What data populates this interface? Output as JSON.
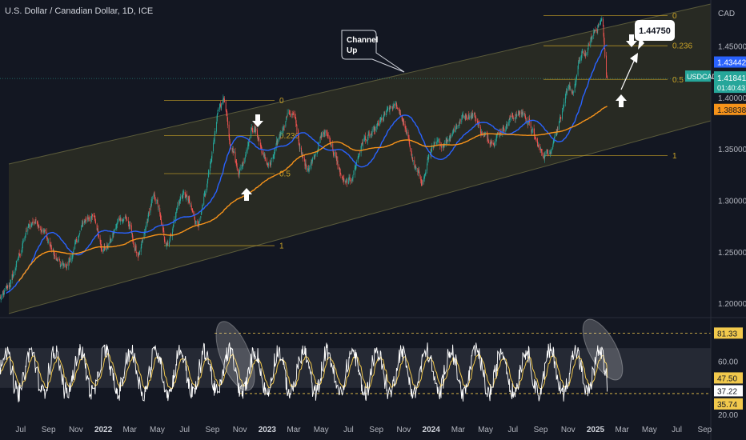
{
  "header": {
    "title": "U.S. Dollar / Canadian Dollar, 1D, ICE",
    "currency": "CAD"
  },
  "colors": {
    "background": "#131722",
    "candle_up": "#26a69a",
    "candle_down": "#ef5350",
    "ma_blue": "#2962ff",
    "ma_orange": "#f7931a",
    "channel_fill": "#3a3a24",
    "fib": "#c9a227",
    "rsi": "#ffffff",
    "rsi_signal": "#f2c94c"
  },
  "chart_data": [
    {
      "type": "candlestick",
      "title": "U.S. Dollar / Canadian Dollar, 1D, ICE",
      "ylim": [
        1.19,
        1.49
      ],
      "y_ticks": [
        "1.20000",
        "1.25000",
        "1.30000",
        "1.35000",
        "1.40000",
        "1.45000"
      ],
      "x_ticks": [
        "Jul",
        "Sep",
        "Nov",
        "2022",
        "Mar",
        "May",
        "Jul",
        "Sep",
        "Nov",
        "2023",
        "Mar",
        "May",
        "Jul",
        "Sep",
        "Nov",
        "2024",
        "Mar",
        "May",
        "Jul",
        "Sep",
        "Nov",
        "2025",
        "Mar",
        "May",
        "Jul",
        "Sep"
      ],
      "price_key_points": [
        [
          "2021-06-01",
          1.205
        ],
        [
          "2021-08-20",
          1.28
        ],
        [
          "2021-10-20",
          1.235
        ],
        [
          "2021-12-20",
          1.285
        ],
        [
          "2022-01-20",
          1.255
        ],
        [
          "2022-03-05",
          1.285
        ],
        [
          "2022-04-05",
          1.248
        ],
        [
          "2022-05-12",
          1.302
        ],
        [
          "2022-06-05",
          1.26
        ],
        [
          "2022-07-14",
          1.305
        ],
        [
          "2022-08-15",
          1.28
        ],
        [
          "2022-10-13",
          1.398
        ],
        [
          "2022-10-28",
          1.358
        ],
        [
          "2022-11-15",
          1.33
        ],
        [
          "2022-12-16",
          1.37
        ],
        [
          "2023-01-20",
          1.335
        ],
        [
          "2023-03-10",
          1.386
        ],
        [
          "2023-04-14",
          1.333
        ],
        [
          "2023-05-25",
          1.365
        ],
        [
          "2023-07-14",
          1.315
        ],
        [
          "2023-08-25",
          1.36
        ],
        [
          "2023-10-31",
          1.39
        ],
        [
          "2023-12-27",
          1.32
        ],
        [
          "2024-01-20",
          1.35
        ],
        [
          "2024-04-16",
          1.385
        ],
        [
          "2024-05-20",
          1.36
        ],
        [
          "2024-08-05",
          1.385
        ],
        [
          "2024-09-25",
          1.345
        ],
        [
          "2024-11-25",
          1.405
        ],
        [
          "2024-12-19",
          1.44
        ],
        [
          "2025-01-31",
          1.475
        ],
        [
          "2025-02-12",
          1.418
        ]
      ],
      "moving_averages": [
        {
          "name": "MA (blue)",
          "color": "#2962ff",
          "last_value": "1.43442"
        },
        {
          "name": "MA (orange)",
          "color": "#f7931a",
          "last_value": "1.38838"
        }
      ],
      "price_labels": [
        {
          "text": "USDCAD",
          "value": "1.41841",
          "countdown": "01:40:43"
        },
        {
          "value": "1.43442",
          "color": "#2962ff"
        },
        {
          "value": "1.38838",
          "color": "#f7931a"
        }
      ],
      "channel": {
        "label": "Channel Up"
      },
      "fib_2022": {
        "levels": [
          "0",
          "0.236",
          "0.5",
          "1"
        ],
        "prices": [
          1.397,
          1.363,
          1.326,
          1.256
        ]
      },
      "fib_2024": {
        "levels": [
          "0",
          "0.236",
          "0.5",
          "1"
        ],
        "prices": [
          1.4795,
          1.4502,
          1.4175,
          1.3435
        ]
      },
      "target": {
        "text": "1.44750",
        "value": 1.4475
      }
    },
    {
      "type": "line",
      "title": "",
      "ylim": [
        20,
        90
      ],
      "y_ticks": [
        "20.00",
        "60.00"
      ],
      "levels": [
        "81.33",
        "35.74"
      ],
      "last_values": [
        "47.50",
        "37.22"
      ],
      "band": [
        40,
        70
      ]
    }
  ]
}
